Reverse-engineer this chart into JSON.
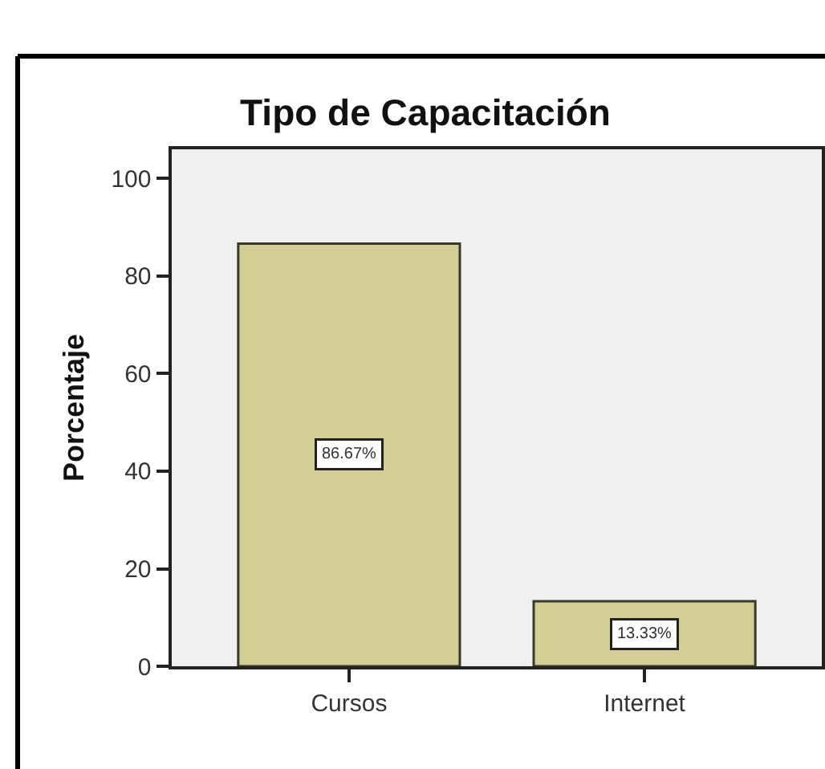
{
  "chart_data": {
    "type": "bar",
    "title": "Tipo de Capacitación",
    "ylabel": "Porcentaje",
    "categories": [
      "Cursos",
      "Internet"
    ],
    "values": [
      86.67,
      13.33
    ],
    "value_labels": [
      "86.67%",
      "13.33%"
    ],
    "color": "#d3ce96",
    "ylim": [
      0,
      106
    ],
    "yticks": [
      0,
      20,
      40,
      60,
      80,
      100
    ]
  }
}
